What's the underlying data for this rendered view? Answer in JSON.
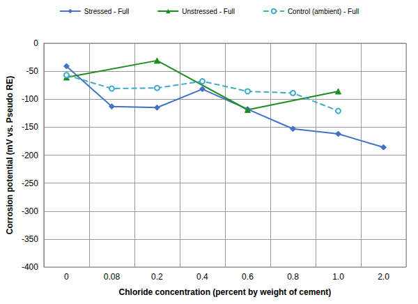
{
  "chart_data": {
    "type": "line",
    "x_label": "Chloride concentration (percent by weight of cement)",
    "y_label": "Corrosion potential (mV vs. Pseudo RE)",
    "categories": [
      "0",
      "0.08",
      "0.2",
      "0.4",
      "0.6",
      "0.8",
      "1.0",
      "2.0"
    ],
    "series": [
      {
        "name": "Stressed - Full",
        "color": "#4472c4",
        "marker": "diamond",
        "line_style": "solid",
        "values": [
          -41,
          -113,
          -115,
          -82,
          -118,
          -153,
          -162,
          -186
        ]
      },
      {
        "name": "Unstressed - Full",
        "color": "#1e8c1e",
        "marker": "triangle",
        "line_style": "solid",
        "values": [
          -61,
          null,
          -31,
          null,
          -119,
          null,
          -86,
          null
        ]
      },
      {
        "name": "Control (ambient) - Full",
        "color": "#3fa9c9",
        "marker": "circle",
        "line_style": "dashed",
        "values": [
          -57,
          -81,
          -80,
          -68,
          -86,
          -89,
          -121,
          null
        ]
      }
    ],
    "ylim": [
      -400,
      0
    ],
    "yticks": [
      -400,
      -350,
      -300,
      -250,
      -200,
      -150,
      -100,
      -50,
      0
    ],
    "grid": true,
    "legend": "top"
  }
}
